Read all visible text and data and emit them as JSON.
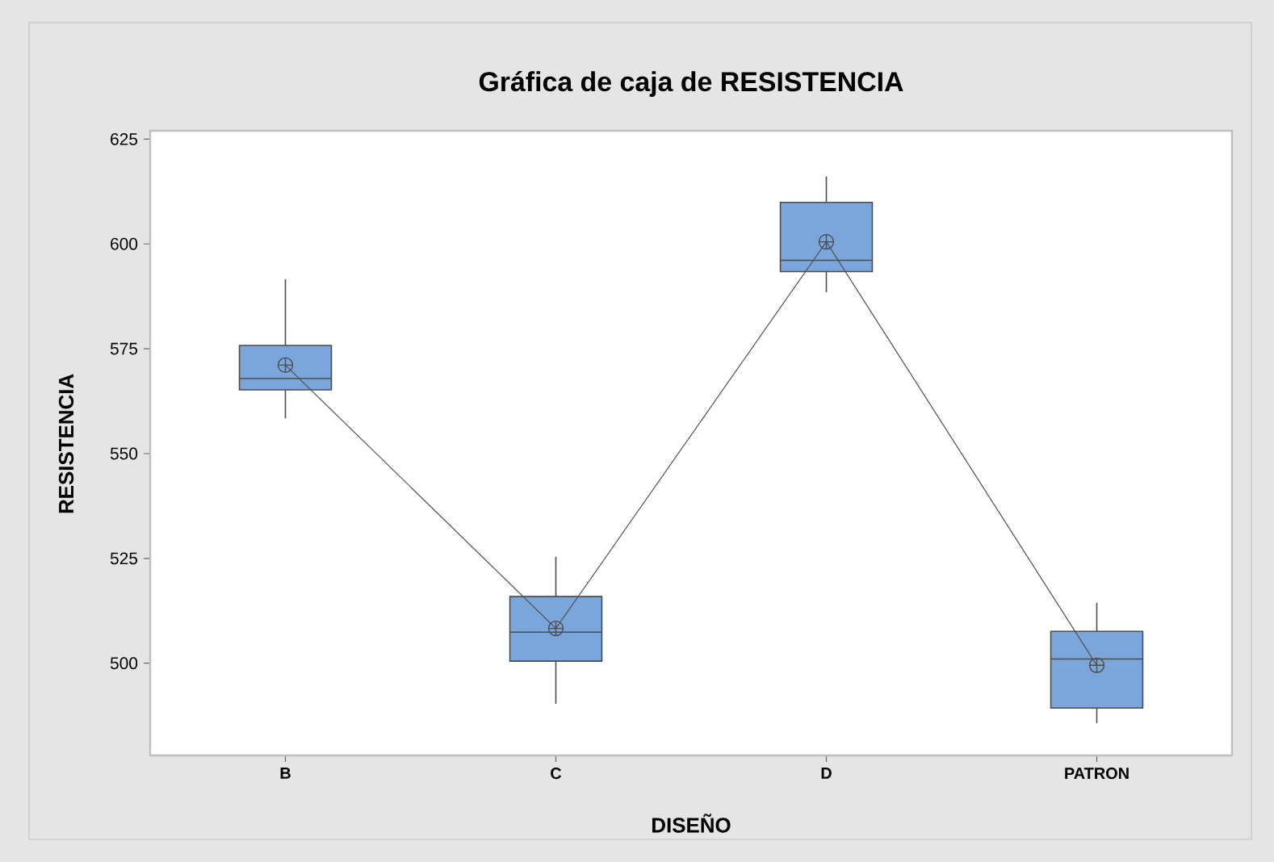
{
  "chart_data": {
    "type": "box",
    "title": "Gráfica de caja de RESISTENCIA",
    "xlabel": "DISEÑO",
    "ylabel": "RESISTENCIA",
    "categories": [
      "B",
      "C",
      "D",
      "PATRON"
    ],
    "ylim": [
      478,
      627
    ],
    "yticks": [
      500,
      525,
      550,
      575,
      600,
      625
    ],
    "series": [
      {
        "color": "#7aa6dc",
        "boxes": [
          {
            "low": 558.4,
            "q1": 565.2,
            "median": 567.9,
            "q3": 575.8,
            "high": 591.6,
            "mean": 571.1
          },
          {
            "low": 490.3,
            "q1": 500.5,
            "median": 507.4,
            "q3": 515.9,
            "high": 525.4,
            "mean": 508.3
          },
          {
            "low": 588.5,
            "q1": 593.4,
            "median": 596.1,
            "q3": 609.9,
            "high": 616.1,
            "mean": 600.5
          },
          {
            "low": 485.7,
            "q1": 489.3,
            "median": 501.0,
            "q3": 507.6,
            "high": 514.4,
            "mean": 499.5
          }
        ]
      },
      {
        "type": "line",
        "color": "#505050",
        "values": [
          571.1,
          508.3,
          600.5,
          499.5
        ]
      }
    ]
  }
}
